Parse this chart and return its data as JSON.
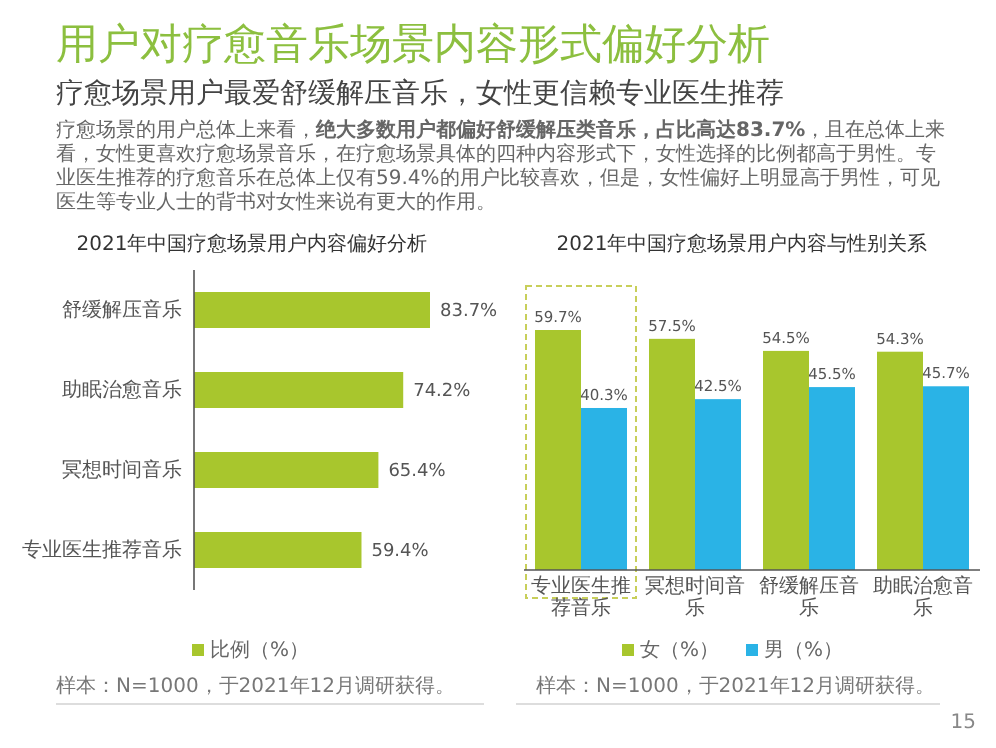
{
  "chart_data": [
    {
      "type": "other",
      "title": "用户对疗愈音乐场景内容形式偏好分析",
      "subtitle": "疗愈场景用户最爱舒缓解压音乐，女性更信赖专业医生推荐",
      "annotations": [
        "疗愈场景的用户总体上来看，**绝大多数用户都偏好舒缓解压类音乐，占比高达83.7%**，且在总体上来看，女性更喜欢疗愈场景音乐，在疗愈场景具体的四种内容形式下，女性选择的比例都高于男性。专业医生推荐的疗愈音乐在总体上仅有59.4%的用户比较喜欢，但是，女性偏好上明显高于男性，可见医生等专业人士的背书对女性来说有更大的作用。",
        "15"
      ]
    },
    {
      "type": "bar",
      "orientation": "horizontal",
      "title": "2021年中国疗愈场景用户内容偏好分析",
      "categories": [
        "舒缓解压音乐",
        "助眠治愈音乐",
        "冥想时间音乐",
        "专业医生推荐音乐"
      ],
      "series": [
        {
          "name": "比例（%）",
          "color": "#a8c62d",
          "values": [
            83.7,
            74.2,
            65.4,
            59.4
          ],
          "value_labels": [
            "83.7%",
            "74.2%",
            "65.4%",
            "59.4%"
          ]
        }
      ],
      "legend": "bottom",
      "annotations": [
        "样本：N=1000，于2021年12月调研获得。"
      ]
    },
    {
      "type": "bar",
      "title": "2021年中国疗愈场景用户内容与性别关系",
      "categories": [
        "专业医生推荐音乐",
        "冥想时间音乐",
        "舒缓解压音乐",
        "助眠治愈音乐"
      ],
      "series": [
        {
          "name": "女（%）",
          "color": "#a8c62d",
          "values": [
            59.7,
            57.5,
            54.5,
            54.3
          ],
          "value_labels": [
            "59.7%",
            "57.5%",
            "54.5%",
            "54.3%"
          ]
        },
        {
          "name": "男（%）",
          "color": "#2ab3e6",
          "values": [
            40.3,
            42.5,
            45.5,
            45.7
          ],
          "value_labels": [
            "40.3%",
            "42.5%",
            "45.5%",
            "45.7%"
          ]
        }
      ],
      "legend": "bottom",
      "annotations": [
        "样本：N=1000，于2021年12月调研获得。"
      ]
    }
  ]
}
